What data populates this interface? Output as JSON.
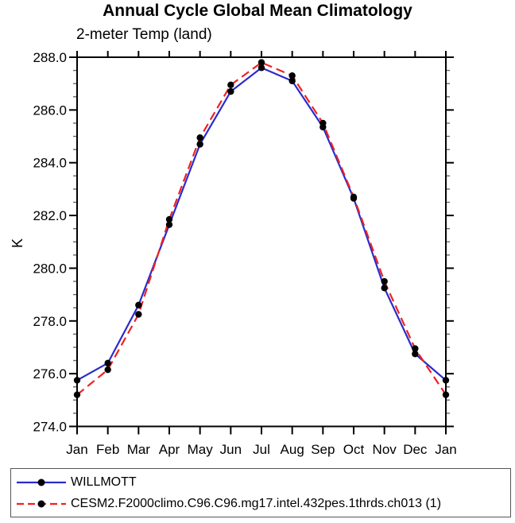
{
  "chart_data": {
    "type": "line",
    "title": "Annual Cycle Global Mean Climatology",
    "subtitle": "2-meter Temp (land)",
    "xlabel": "",
    "ylabel": "K",
    "categories": [
      "Jan",
      "Feb",
      "Mar",
      "Apr",
      "May",
      "Jun",
      "Jul",
      "Aug",
      "Sep",
      "Oct",
      "Nov",
      "Dec",
      "Jan"
    ],
    "ylim": [
      274.0,
      288.0
    ],
    "ytick_interval": 2.0,
    "ytick_minor_interval": 0.5,
    "ytick_labels": [
      "274.0",
      "276.0",
      "278.0",
      "280.0",
      "282.0",
      "284.0",
      "286.0",
      "288.0"
    ],
    "grid": false,
    "legend_position": "bottom-box",
    "axis_color": "#000000",
    "series": [
      {
        "name": "WILLMOTT",
        "color": "#2b2bcc",
        "line_style": "solid",
        "marker": "filled-circle",
        "marker_color": "#000000",
        "values": [
          275.75,
          276.4,
          278.6,
          281.65,
          284.7,
          286.7,
          287.6,
          287.1,
          285.35,
          282.65,
          279.25,
          276.75,
          275.75
        ]
      },
      {
        "name": "CESM2.F2000climo.C96.C96.mg17.intel.432pes.1thrds.ch013 (1)",
        "color": "#ee2222",
        "line_style": "dashed",
        "marker": "filled-circle",
        "marker_color": "#000000",
        "values": [
          275.2,
          276.15,
          278.25,
          281.85,
          284.95,
          286.95,
          287.8,
          287.3,
          285.5,
          282.7,
          279.5,
          276.95,
          275.2
        ]
      }
    ]
  }
}
